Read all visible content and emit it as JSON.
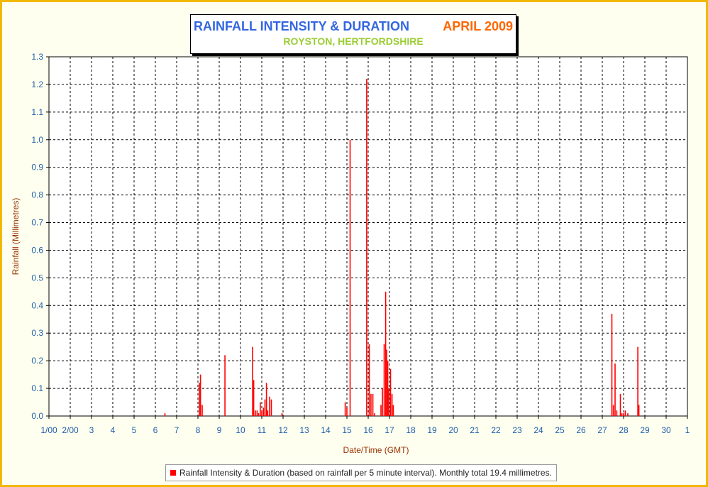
{
  "header": {
    "title": "RAINFALL INTENSITY & DURATION",
    "month": "APRIL 2009",
    "subtitle": "ROYSTON, HERTFORDSHIRE"
  },
  "legend": {
    "label": "Rainfall Intensity & Duration (based on rainfall per 5 minute interval). Monthly total 19.4 millimetres."
  },
  "colors": {
    "bars": "#ff0000",
    "title": "#3366e0",
    "month": "#ff6600",
    "subtitle": "#9acd32",
    "axis_labels": "#993300",
    "tick_labels": "#1f5fa8",
    "frame": "#f0b800"
  },
  "chart_data": {
    "type": "bar",
    "title": "RAINFALL INTENSITY & DURATION",
    "subtitle": "ROYSTON, HERTFORDSHIRE",
    "xlabel": "Date/Time (GMT)",
    "ylabel": "Rainfall (Millimetres)",
    "xlim": [
      1,
      31
    ],
    "ylim": [
      0,
      1.3
    ],
    "grid": true,
    "legend_position": "bottom",
    "x_tick_labels": [
      "1/00",
      "2/00",
      "3",
      "4",
      "5",
      "6",
      "7",
      "8",
      "9",
      "10",
      "11",
      "12",
      "13",
      "14",
      "15",
      "16",
      "17",
      "18",
      "19",
      "20",
      "21",
      "22",
      "23",
      "24",
      "25",
      "26",
      "27",
      "28",
      "29",
      "30",
      "1"
    ],
    "y_tick_labels": [
      "0.0",
      "0.1",
      "0.2",
      "0.3",
      "0.4",
      "0.5",
      "0.6",
      "0.7",
      "0.8",
      "0.9",
      "1.0",
      "1.1",
      "1.2",
      "1.3"
    ],
    "series": [
      {
        "name": "Rainfall Intensity & Duration (based on rainfall per 5 minute interval). Monthly total 19.4 millimetres.",
        "points": [
          [
            6.45,
            0.01
          ],
          [
            8.07,
            0.12
          ],
          [
            8.12,
            0.15
          ],
          [
            8.2,
            0.04
          ],
          [
            9.27,
            0.22
          ],
          [
            10.57,
            0.25
          ],
          [
            10.62,
            0.13
          ],
          [
            10.7,
            0.02
          ],
          [
            10.78,
            0.02
          ],
          [
            10.85,
            0.01
          ],
          [
            10.93,
            0.05
          ],
          [
            11.0,
            0.02
          ],
          [
            11.08,
            0.03
          ],
          [
            11.15,
            0.06
          ],
          [
            11.22,
            0.12
          ],
          [
            11.28,
            0.02
          ],
          [
            11.37,
            0.07
          ],
          [
            11.45,
            0.06
          ],
          [
            11.95,
            0.01
          ],
          [
            14.92,
            0.05
          ],
          [
            15.0,
            0.03
          ],
          [
            15.15,
            1.0
          ],
          [
            15.93,
            1.22
          ],
          [
            16.05,
            0.26
          ],
          [
            16.13,
            0.08
          ],
          [
            16.22,
            0.08
          ],
          [
            16.3,
            0.01
          ],
          [
            16.6,
            0.04
          ],
          [
            16.67,
            0.1
          ],
          [
            16.75,
            0.26
          ],
          [
            16.82,
            0.45
          ],
          [
            16.87,
            0.24
          ],
          [
            16.92,
            0.2
          ],
          [
            16.97,
            0.1
          ],
          [
            17.05,
            0.17
          ],
          [
            17.12,
            0.08
          ],
          [
            17.18,
            0.04
          ],
          [
            27.45,
            0.37
          ],
          [
            27.52,
            0.04
          ],
          [
            27.6,
            0.19
          ],
          [
            27.68,
            0.02
          ],
          [
            27.85,
            0.08
          ],
          [
            27.92,
            0.01
          ],
          [
            28.0,
            0.01
          ],
          [
            28.08,
            0.02
          ],
          [
            28.2,
            0.01
          ],
          [
            28.67,
            0.25
          ],
          [
            28.72,
            0.04
          ]
        ]
      }
    ]
  }
}
